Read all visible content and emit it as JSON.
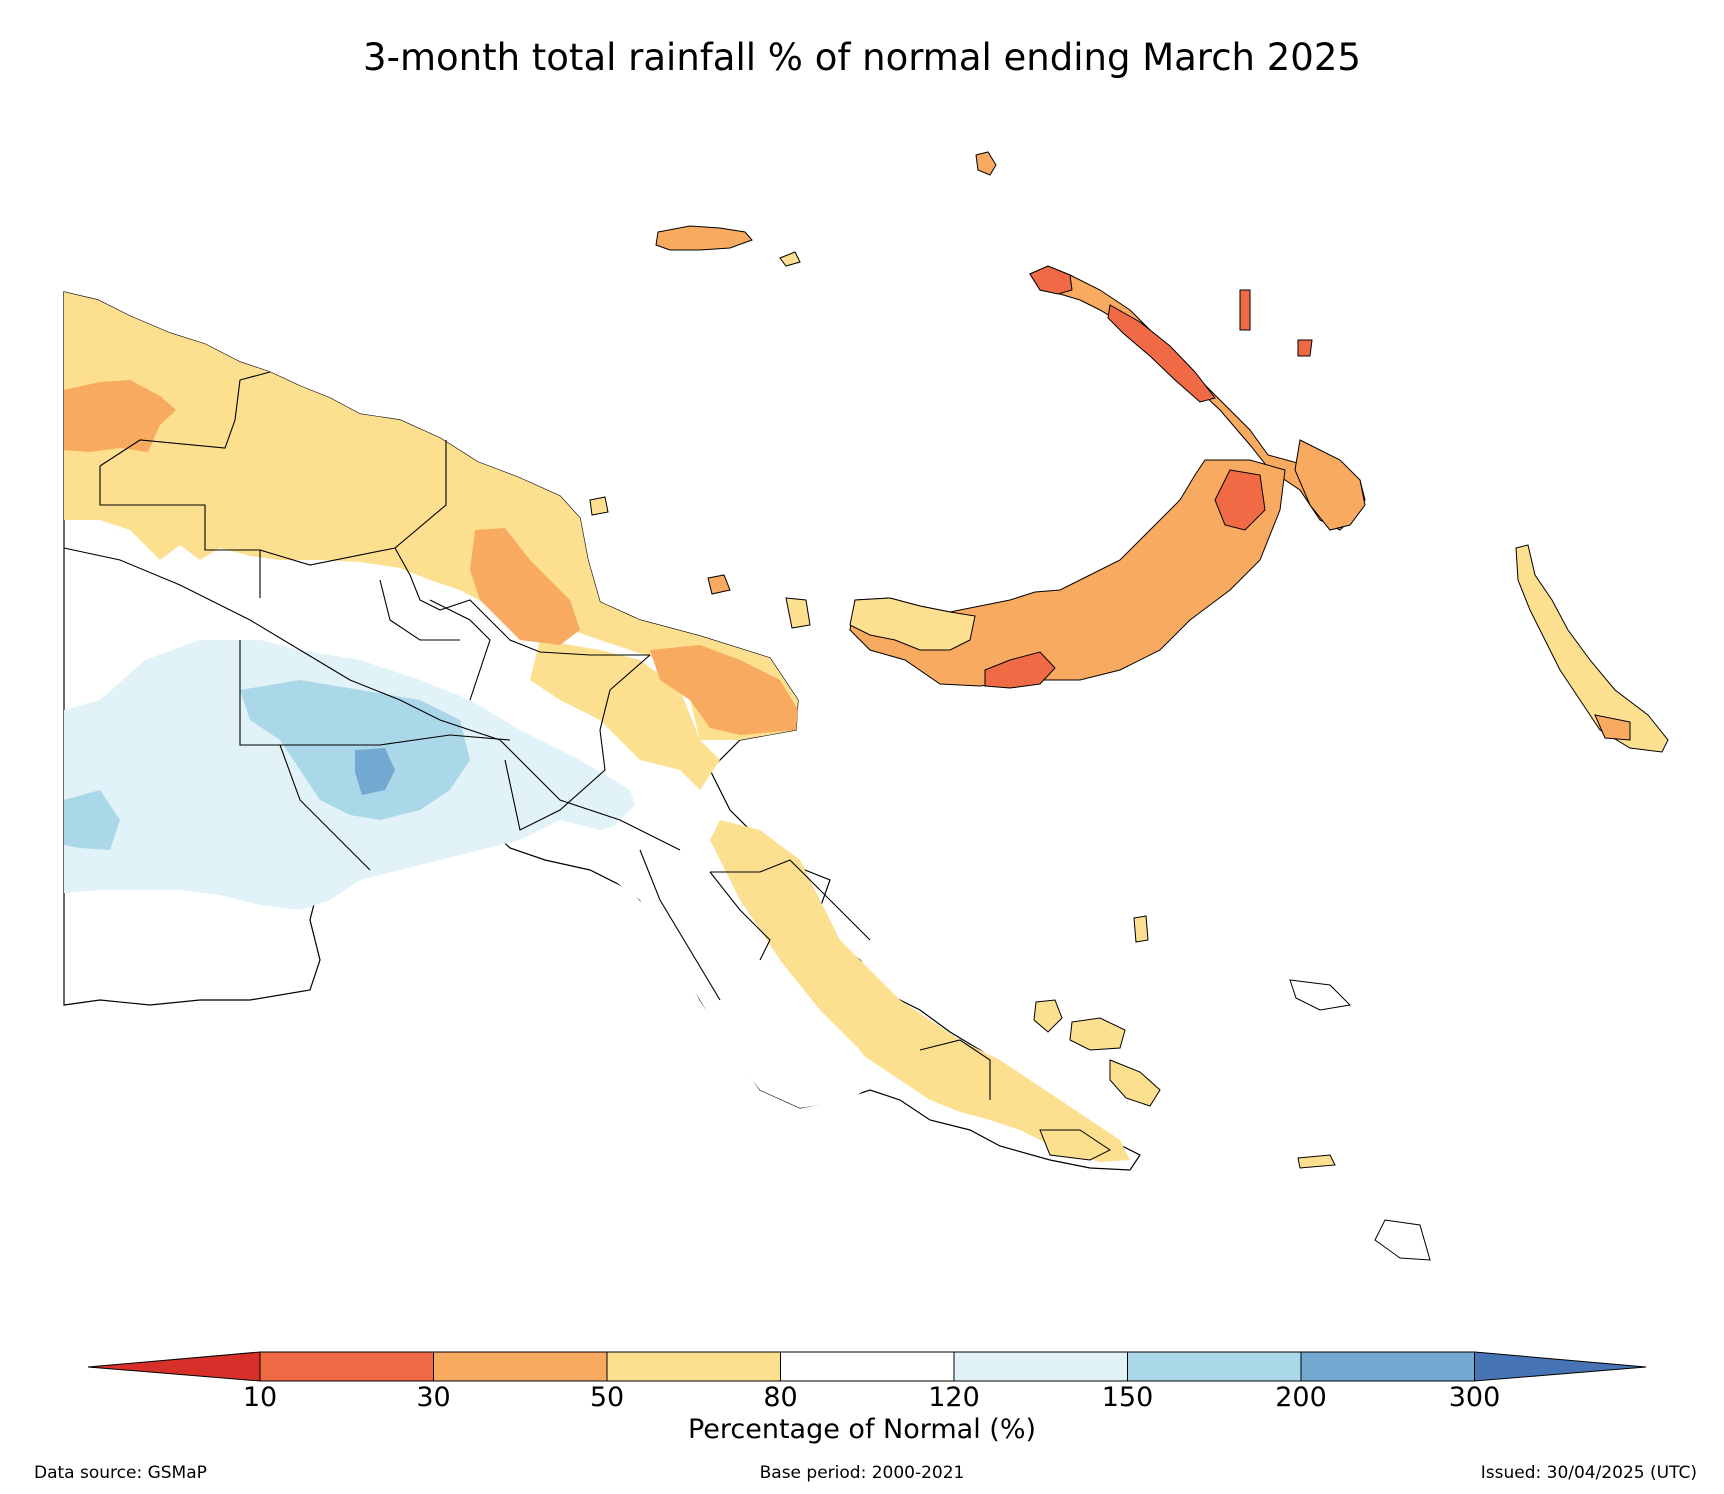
{
  "title": "3-month total rainfall % of normal ending March 2025",
  "colorbar": {
    "label": "Percentage of Normal (%)",
    "ticks": [
      "10",
      "30",
      "50",
      "80",
      "120",
      "150",
      "200",
      "300"
    ],
    "bins": [
      {
        "range": "<10",
        "color": "#d7302a"
      },
      {
        "range": "10-30",
        "color": "#f06b45"
      },
      {
        "range": "30-50",
        "color": "#f8aa60"
      },
      {
        "range": "50-80",
        "color": "#fddf90"
      },
      {
        "range": "80-120",
        "color": "#ffffff"
      },
      {
        "range": "120-150",
        "color": "#e1f2f8"
      },
      {
        "range": "150-200",
        "color": "#abd8e8"
      },
      {
        "range": "200-300",
        "color": "#73a8d0"
      },
      {
        "range": ">300",
        "color": "#4674b5"
      }
    ]
  },
  "footer": {
    "data_source": "Data source: GSMaP",
    "base_period": "Base period: 2000-2021",
    "issued": "Issued: 30/04/2025 (UTC)"
  }
}
